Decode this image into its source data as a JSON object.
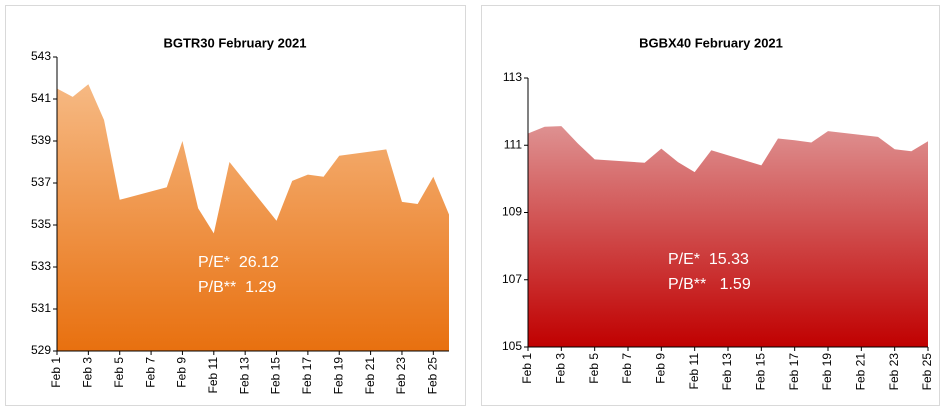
{
  "chart_data": [
    {
      "type": "area",
      "title": "BGTR30  February 2021",
      "x": [
        1,
        2,
        3,
        4,
        5,
        8,
        9,
        10,
        11,
        12,
        15,
        16,
        17,
        18,
        19,
        22,
        23,
        24,
        25,
        26
      ],
      "values": [
        541.5,
        541.1,
        541.7,
        540.0,
        536.2,
        536.8,
        539.0,
        535.8,
        534.6,
        538.0,
        535.2,
        537.1,
        537.4,
        537.3,
        538.3,
        538.6,
        536.1,
        536.0,
        537.3,
        535.5
      ],
      "colors": [
        "#f6b983",
        "#e8700f"
      ],
      "xlim": [
        1,
        26
      ],
      "xticks": [
        {
          "value": 1,
          "label": "Feb 1"
        },
        {
          "value": 3,
          "label": "Feb 3"
        },
        {
          "value": 5,
          "label": "Feb 5"
        },
        {
          "value": 7,
          "label": "Feb 7"
        },
        {
          "value": 9,
          "label": "Feb 9"
        },
        {
          "value": 11,
          "label": "Feb 11"
        },
        {
          "value": 13,
          "label": "Feb 13"
        },
        {
          "value": 15,
          "label": "Feb 15"
        },
        {
          "value": 17,
          "label": "Feb 17"
        },
        {
          "value": 19,
          "label": "Feb 19"
        },
        {
          "value": 21,
          "label": "Feb 21"
        },
        {
          "value": 23,
          "label": "Feb 23"
        },
        {
          "value": 25,
          "label": "Feb 25"
        }
      ],
      "ylim": [
        529,
        543
      ],
      "yticks": [
        529,
        531,
        533,
        535,
        537,
        539,
        541,
        543
      ],
      "annotations": [
        "P/E*  26.12",
        "P/B**  1.29"
      ]
    },
    {
      "type": "area",
      "title": "BGBX40  February 2021",
      "x": [
        1,
        2,
        3,
        4,
        5,
        8,
        9,
        10,
        11,
        12,
        15,
        16,
        17,
        18,
        19,
        22,
        23,
        24,
        25
      ],
      "values": [
        111.35,
        111.55,
        111.57,
        111.05,
        110.58,
        110.48,
        110.9,
        110.5,
        110.2,
        110.85,
        110.4,
        111.2,
        111.15,
        111.08,
        111.42,
        111.25,
        110.88,
        110.82,
        111.12
      ],
      "colors": [
        "#de9191",
        "#c00000"
      ],
      "xlim": [
        1,
        25
      ],
      "xticks": [
        {
          "value": 1,
          "label": "Feb 1"
        },
        {
          "value": 3,
          "label": "Feb 3"
        },
        {
          "value": 5,
          "label": "Feb 5"
        },
        {
          "value": 7,
          "label": "Feb 7"
        },
        {
          "value": 9,
          "label": "Feb 9"
        },
        {
          "value": 11,
          "label": "Feb 11"
        },
        {
          "value": 13,
          "label": "Feb 13"
        },
        {
          "value": 15,
          "label": "Feb 15"
        },
        {
          "value": 17,
          "label": "Feb 17"
        },
        {
          "value": 19,
          "label": "Feb 19"
        },
        {
          "value": 21,
          "label": "Feb 21"
        },
        {
          "value": 23,
          "label": "Feb 23"
        },
        {
          "value": 25,
          "label": "Feb 25"
        }
      ],
      "ylim": [
        105,
        113
      ],
      "yticks": [
        105,
        107,
        109,
        111,
        113
      ],
      "annotations": [
        "P/E*  15.33",
        "P/B**   1.59"
      ]
    }
  ]
}
